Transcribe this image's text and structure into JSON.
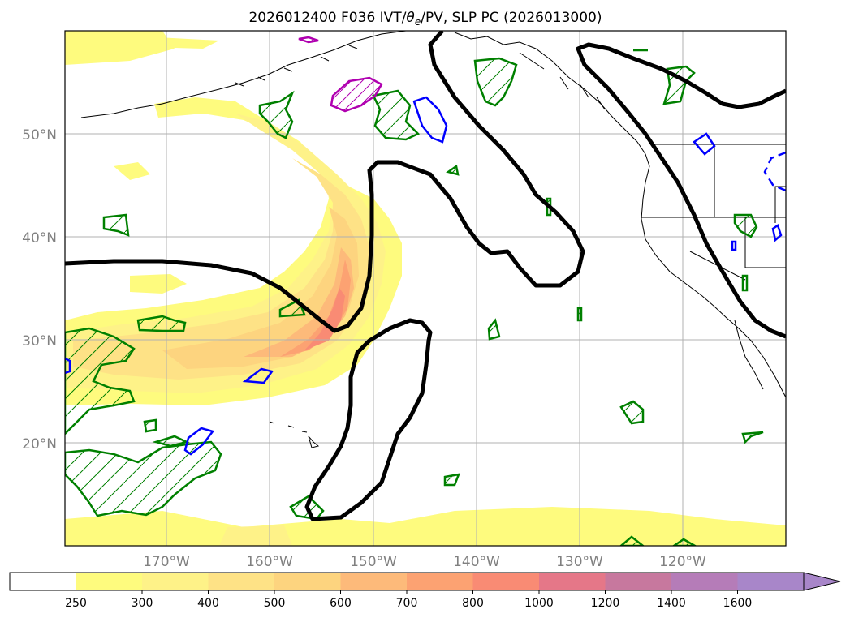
{
  "title": "2026012400 F036 IVT/θe/PV, SLP PC (2026013000)",
  "title_parts": {
    "before": "2026012400 F036 IVT/",
    "theta": "θ",
    "theta_sub": "e",
    "after": "/PV, SLP PC (2026013000)"
  },
  "map": {
    "projection": "equirectangular",
    "lon_range": [
      -180,
      -110
    ],
    "lat_range": [
      10,
      60
    ],
    "gridlines": true,
    "lat_labels": [
      "20°N",
      "30°N",
      "40°N",
      "50°N"
    ],
    "lon_labels": [
      "170°W",
      "160°W",
      "150°W",
      "140°W",
      "130°W",
      "120°W"
    ],
    "layers": {
      "ivt_fill": "shaded IVT plume from subtropical central Pacific toward Gulf of Alaska",
      "slp_contour_color": "#000000",
      "theta_e_contour_color": "#008000",
      "pv_contour_color": "#0000ff",
      "magenta_contour_color": "#b000b0"
    }
  },
  "colorbar": {
    "levels": [
      "250",
      "300",
      "400",
      "500",
      "600",
      "700",
      "800",
      "1000",
      "1200",
      "1400",
      "1600"
    ],
    "colors": [
      "#ffffff",
      "#fefb7e",
      "#fef288",
      "#fee286",
      "#fdd47f",
      "#fdba7a",
      "#fca272",
      "#f98b74",
      "#e57788",
      "#c7789e",
      "#b57cb8",
      "#a886c9"
    ],
    "extend": "max"
  }
}
